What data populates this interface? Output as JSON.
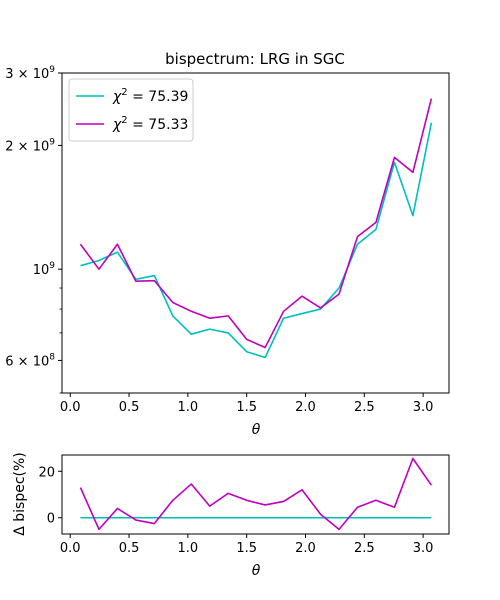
{
  "chart_data": [
    {
      "type": "line",
      "title": "bispectrum: LRG in SGC",
      "xlabel": "θ",
      "ylabel": "",
      "xlim": [
        -0.07,
        3.22
      ],
      "ylim": [
        500000000,
        3000000000
      ],
      "yscale": "log",
      "xticks": [
        0.0,
        0.5,
        1.0,
        1.5,
        2.0,
        2.5,
        3.0
      ],
      "xtick_labels": [
        "0.0",
        "0.5",
        "1.0",
        "1.5",
        "2.0",
        "2.5",
        "3.0"
      ],
      "yticks": [
        600000000,
        1000000000,
        2000000000,
        3000000000
      ],
      "ytick_labels": [
        {
          "base": "6 × 10",
          "exp": "8"
        },
        {
          "base": "10",
          "exp": "9"
        },
        {
          "base": "2 × 10",
          "exp": "9"
        },
        {
          "base": "3 × 10",
          "exp": "9"
        }
      ],
      "legend_position": "upper-left",
      "grid": false,
      "x": [
        0.087,
        0.244,
        0.401,
        0.558,
        0.715,
        0.872,
        1.029,
        1.186,
        1.343,
        1.5,
        1.657,
        1.814,
        1.971,
        2.128,
        2.285,
        2.442,
        2.599,
        2.756,
        2.913,
        3.07
      ],
      "series": [
        {
          "name": {
            "base": "χ",
            "exp": "2",
            "rest": " = 75.39"
          },
          "color": "#00bfbf",
          "values": [
            1020000000,
            1050000000,
            1100000000,
            945000000,
            965000000,
            770000000,
            695000000,
            715000000,
            700000000,
            630000000,
            610000000,
            760000000,
            780000000,
            800000000,
            900000000,
            1150000000,
            1250000000,
            1820000000,
            1350000000,
            2270000000
          ]
        },
        {
          "name": {
            "base": "χ",
            "exp": "2",
            "rest": " = 75.33"
          },
          "color": "#bf00bf",
          "values": [
            1150000000,
            1000000000,
            1150000000,
            935000000,
            938000000,
            830000000,
            790000000,
            760000000,
            770000000,
            675000000,
            645000000,
            790000000,
            860000000,
            805000000,
            870000000,
            1200000000,
            1300000000,
            1870000000,
            1720000000,
            2600000000
          ]
        }
      ]
    },
    {
      "type": "line",
      "title": "",
      "xlabel": "θ",
      "ylabel": "Δ bispec(%)",
      "xlim": [
        -0.07,
        3.22
      ],
      "ylim": [
        -7,
        27
      ],
      "xticks": [
        0.0,
        0.5,
        1.0,
        1.5,
        2.0,
        2.5,
        3.0
      ],
      "xtick_labels": [
        "0.0",
        "0.5",
        "1.0",
        "1.5",
        "2.0",
        "2.5",
        "3.0"
      ],
      "yticks": [
        0,
        20
      ],
      "ytick_labels": [
        "0",
        "20"
      ],
      "grid": false,
      "x": [
        0.087,
        0.244,
        0.401,
        0.558,
        0.715,
        0.872,
        1.029,
        1.186,
        1.343,
        1.5,
        1.657,
        1.814,
        1.971,
        2.128,
        2.285,
        2.442,
        2.599,
        2.756,
        2.913,
        3.07
      ],
      "series": [
        {
          "color": "#00bfbf",
          "values": [
            0,
            0,
            0,
            0,
            0,
            0,
            0,
            0,
            0,
            0,
            0,
            0,
            0,
            0,
            0,
            0,
            0,
            0,
            0,
            0
          ]
        },
        {
          "color": "#bf00bf",
          "values": [
            13,
            -5,
            4,
            -1,
            -2.5,
            7.5,
            14.5,
            5,
            10.5,
            7.5,
            5.5,
            7,
            12,
            1.5,
            -5,
            4.5,
            7.5,
            4.5,
            25.5,
            14
          ]
        }
      ]
    }
  ]
}
